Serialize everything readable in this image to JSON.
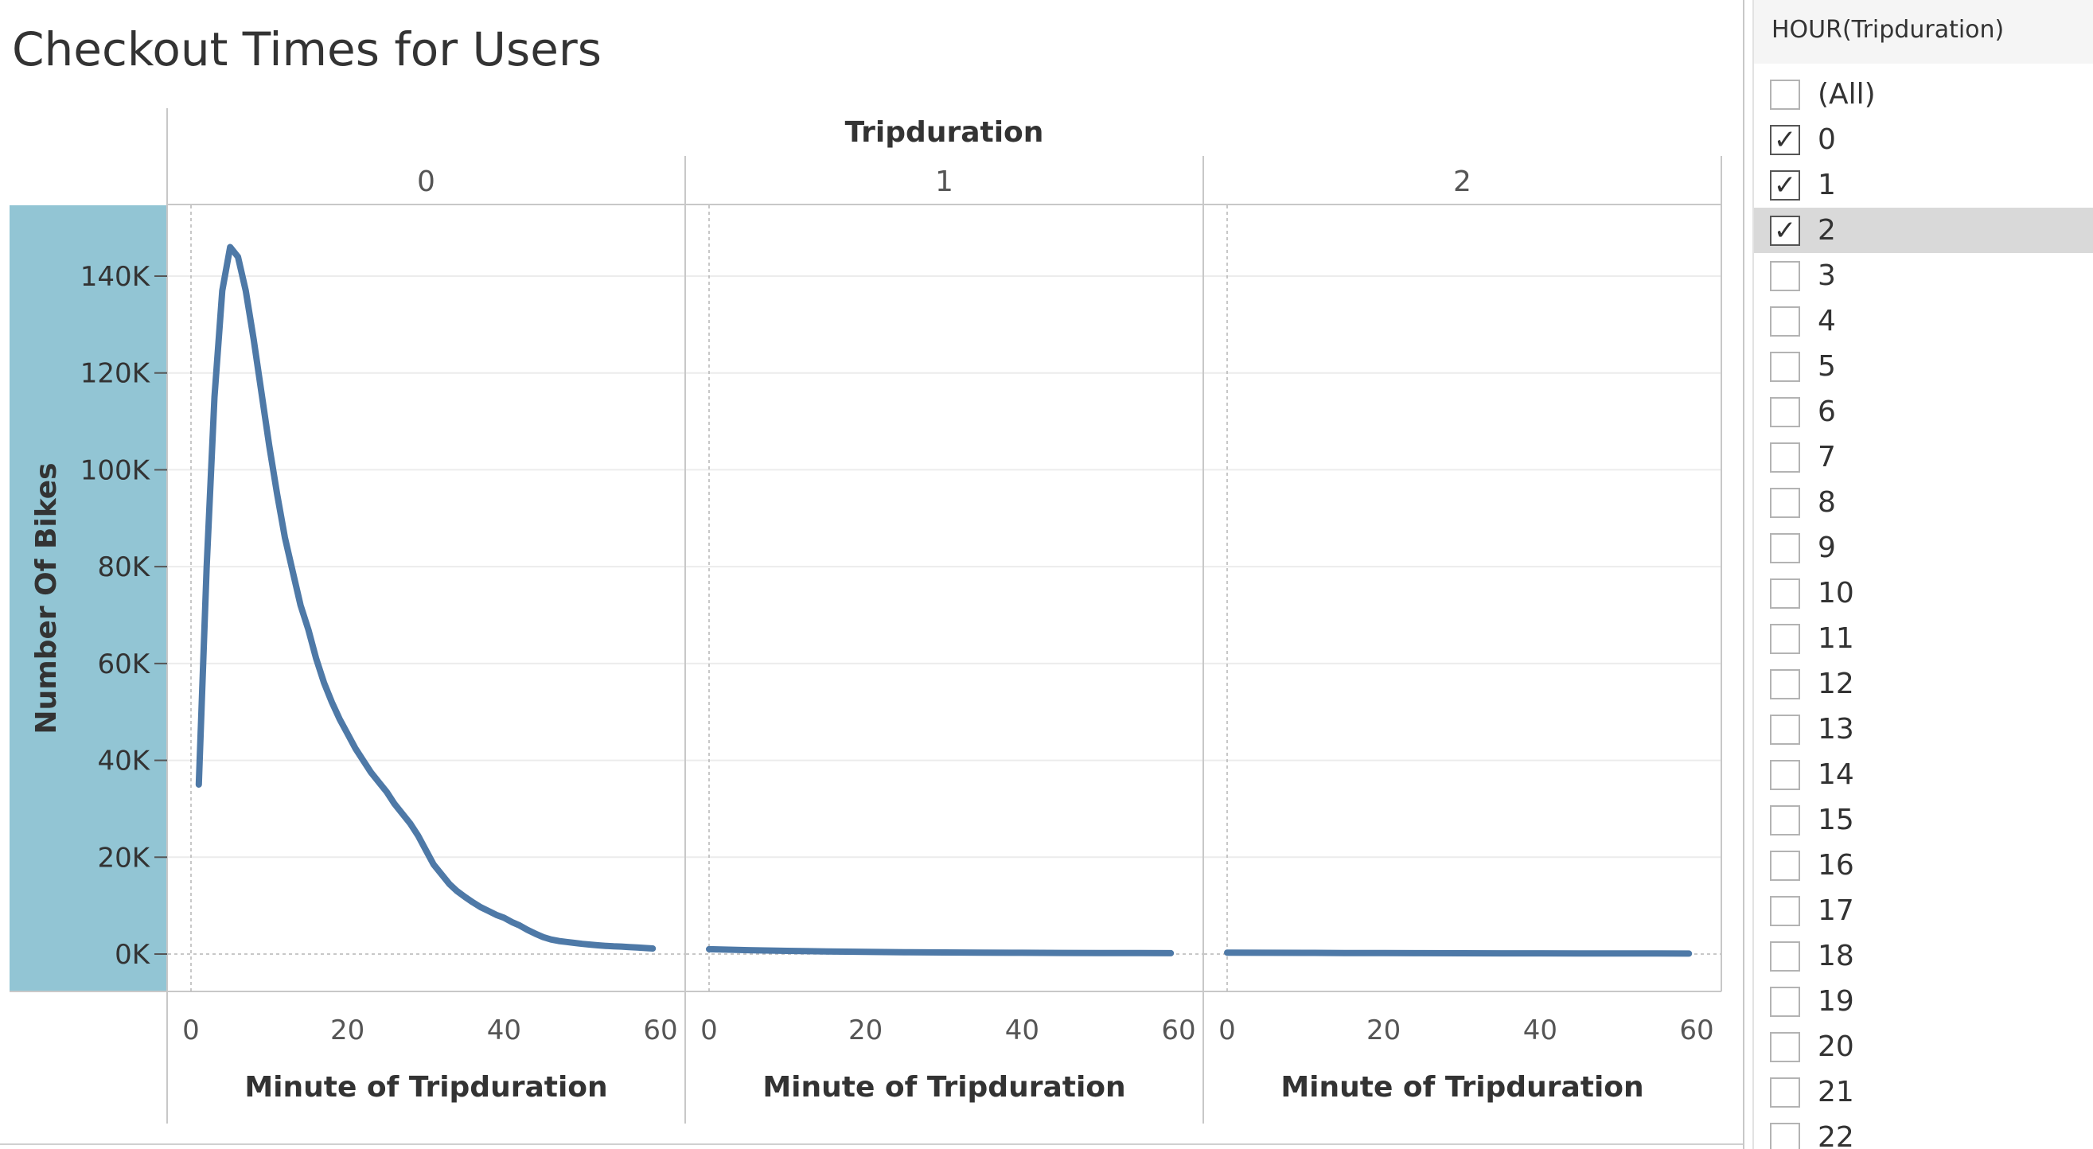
{
  "chart_data": {
    "type": "line",
    "title": "Checkout Times for Users",
    "facet_header": "Tripduration",
    "ylabel": "Number Of Bikes",
    "xlabel": "Minute of Tripduration",
    "ylim": [
      0,
      150000
    ],
    "yticks": [
      0,
      20000,
      40000,
      60000,
      80000,
      100000,
      120000,
      140000
    ],
    "ytick_labels": [
      "0K",
      "20K",
      "40K",
      "60K",
      "80K",
      "100K",
      "120K",
      "140K"
    ],
    "xlim": [
      -2,
      62
    ],
    "xticks": [
      0,
      20,
      40,
      60
    ],
    "xtick_labels": [
      "0",
      "20",
      "40",
      "60"
    ],
    "grid": true,
    "line_color": "#4e79a7",
    "highlight_color": "#92c5d4",
    "panels": [
      {
        "name": "0",
        "x": [
          1,
          2,
          3,
          4,
          5,
          6,
          7,
          8,
          9,
          10,
          11,
          12,
          13,
          14,
          15,
          16,
          17,
          18,
          19,
          20,
          21,
          22,
          23,
          24,
          25,
          26,
          27,
          28,
          29,
          30,
          31,
          32,
          33,
          34,
          35,
          36,
          37,
          38,
          39,
          40,
          41,
          42,
          43,
          44,
          45,
          46,
          47,
          48,
          49,
          50,
          51,
          52,
          53,
          54,
          55,
          56,
          57,
          58,
          59
        ],
        "y": [
          35000,
          80000,
          115000,
          137000,
          146000,
          144000,
          137000,
          127000,
          116000,
          105000,
          95000,
          86000,
          79000,
          72000,
          67000,
          61000,
          56000,
          52000,
          48500,
          45500,
          42500,
          40000,
          37500,
          35500,
          33500,
          31000,
          29000,
          27000,
          24500,
          21500,
          18500,
          16500,
          14500,
          13000,
          11800,
          10700,
          9700,
          8900,
          8100,
          7500,
          6600,
          5900,
          5000,
          4200,
          3500,
          3000,
          2700,
          2500,
          2300,
          2100,
          1950,
          1800,
          1700,
          1600,
          1550,
          1450,
          1350,
          1250,
          1150
        ]
      },
      {
        "name": "1",
        "x": [
          0,
          5,
          10,
          15,
          20,
          25,
          30,
          35,
          40,
          45,
          50,
          55,
          59
        ],
        "y": [
          1000,
          800,
          650,
          550,
          450,
          380,
          330,
          290,
          260,
          230,
          210,
          190,
          180
        ]
      },
      {
        "name": "2",
        "x": [
          0,
          5,
          10,
          15,
          20,
          25,
          30,
          35,
          40,
          45,
          50,
          55,
          59
        ],
        "y": [
          300,
          270,
          240,
          220,
          200,
          180,
          165,
          150,
          140,
          130,
          120,
          110,
          100
        ]
      }
    ]
  },
  "filter": {
    "title": "HOUR(Tripduration)",
    "items": [
      {
        "label": "(All)",
        "checked": false,
        "highlighted": false
      },
      {
        "label": "0",
        "checked": true,
        "highlighted": false
      },
      {
        "label": "1",
        "checked": true,
        "highlighted": false
      },
      {
        "label": "2",
        "checked": true,
        "highlighted": true
      },
      {
        "label": "3",
        "checked": false,
        "highlighted": false
      },
      {
        "label": "4",
        "checked": false,
        "highlighted": false
      },
      {
        "label": "5",
        "checked": false,
        "highlighted": false
      },
      {
        "label": "6",
        "checked": false,
        "highlighted": false
      },
      {
        "label": "7",
        "checked": false,
        "highlighted": false
      },
      {
        "label": "8",
        "checked": false,
        "highlighted": false
      },
      {
        "label": "9",
        "checked": false,
        "highlighted": false
      },
      {
        "label": "10",
        "checked": false,
        "highlighted": false
      },
      {
        "label": "11",
        "checked": false,
        "highlighted": false
      },
      {
        "label": "12",
        "checked": false,
        "highlighted": false
      },
      {
        "label": "13",
        "checked": false,
        "highlighted": false
      },
      {
        "label": "14",
        "checked": false,
        "highlighted": false
      },
      {
        "label": "15",
        "checked": false,
        "highlighted": false
      },
      {
        "label": "16",
        "checked": false,
        "highlighted": false
      },
      {
        "label": "17",
        "checked": false,
        "highlighted": false
      },
      {
        "label": "18",
        "checked": false,
        "highlighted": false
      },
      {
        "label": "19",
        "checked": false,
        "highlighted": false
      },
      {
        "label": "20",
        "checked": false,
        "highlighted": false
      },
      {
        "label": "21",
        "checked": false,
        "highlighted": false
      },
      {
        "label": "22",
        "checked": false,
        "highlighted": false
      }
    ],
    "check_glyph": "✓"
  }
}
